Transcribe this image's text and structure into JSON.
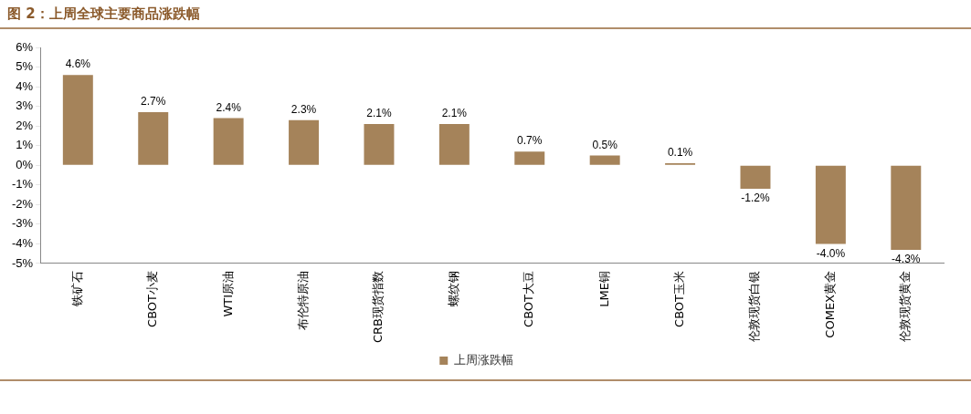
{
  "chart_data": {
    "type": "bar",
    "title": "图 2：上周全球主要商品涨跌幅",
    "categories": [
      "铁矿石",
      "CBOT小麦",
      "WTI原油",
      "布伦特原油",
      "CRB现货指数",
      "螺纹钢",
      "CBOT大豆",
      "LME铜",
      "CBOT玉米",
      "伦敦现货白银",
      "COMEX黄金",
      "伦敦现货黄金"
    ],
    "series": [
      {
        "name": "上周涨跌幅",
        "color": "#a5835a",
        "values": [
          4.6,
          2.7,
          2.4,
          2.3,
          2.1,
          2.1,
          0.7,
          0.5,
          0.1,
          -1.2,
          -4.0,
          -4.3
        ],
        "value_labels": [
          "4.6%",
          "2.7%",
          "2.4%",
          "2.3%",
          "2.1%",
          "2.1%",
          "0.7%",
          "0.5%",
          "0.1%",
          "-1.2%",
          "-4.0%",
          "-4.3%"
        ]
      }
    ],
    "ylim": [
      -5,
      6
    ],
    "yticks": [
      {
        "value": -5,
        "label": "-5%"
      },
      {
        "value": -4,
        "label": "-4%"
      },
      {
        "value": -3,
        "label": "-3%"
      },
      {
        "value": -2,
        "label": "-2%"
      },
      {
        "value": -1,
        "label": "-1%"
      },
      {
        "value": 0,
        "label": "0%"
      },
      {
        "value": 1,
        "label": "1%"
      },
      {
        "value": 2,
        "label": "2%"
      },
      {
        "value": 3,
        "label": "3%"
      },
      {
        "value": 4,
        "label": "4%"
      },
      {
        "value": 5,
        "label": "5%"
      },
      {
        "value": 6,
        "label": "6%"
      }
    ],
    "grid": false,
    "legend": "bottom"
  }
}
